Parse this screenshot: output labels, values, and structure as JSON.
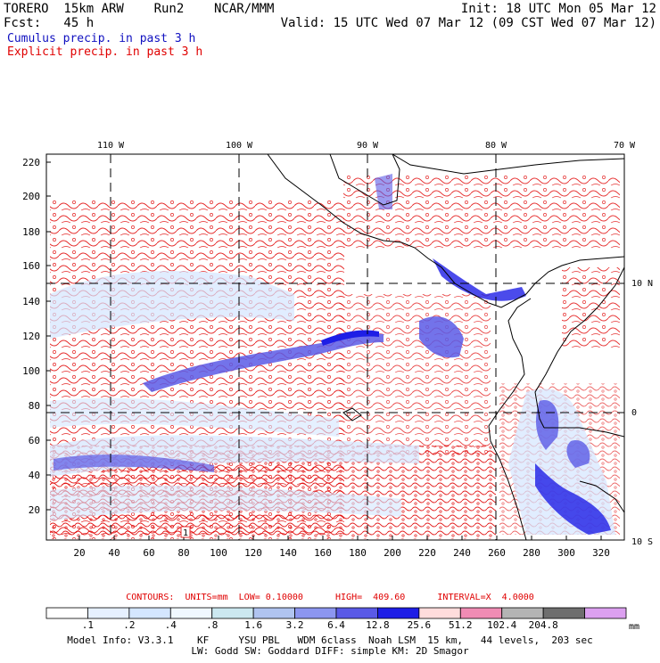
{
  "header": {
    "line1_left": "TORERO  15km ARW    Run2    NCAR/MMM",
    "line1_right": "Init: 18 UTC Mon 05 Mar 12",
    "line2_left": "Fcst:   45 h",
    "line2_right": "Valid: 15 UTC Wed 07 Mar 12 (09 CST Wed 07 Mar 12)",
    "field1": "Cumulus precip. in past 3 h",
    "field2": "Explicit precip. in past 3 h",
    "field1_color": "#1010c0",
    "field2_color": "#e00000"
  },
  "map": {
    "top_labels": [
      "110 W",
      "100 W",
      "90 W",
      "80 W",
      "70 W"
    ],
    "right_labels": [
      "10 N",
      "0",
      "10 S"
    ],
    "left_ticks": [
      "220",
      "200",
      "180",
      "160",
      "140",
      "120",
      "100",
      "80",
      "60",
      "40",
      "20"
    ],
    "bottom_ticks": [
      "20",
      "40",
      "60",
      "80",
      "100",
      "120",
      "140",
      "160",
      "180",
      "200",
      "220",
      "240",
      "260",
      "280",
      "300",
      "320"
    ],
    "marker_label": "1"
  },
  "contours_text": "CONTOURS:  UNITS=mm  LOW= 0.10000      HIGH=  409.60      INTERVAL=X  4.0000",
  "legend": {
    "colors": [
      "#ffffff",
      "#e6f0ff",
      "#d4e6ff",
      "#f0f8ff",
      "#cce8f0",
      "#b0c4f0",
      "#8c96f0",
      "#5a5ae6",
      "#1e1ee6",
      "#ffdcdc",
      "#f08cb4",
      "#b4b4b4",
      "#6e6e6e",
      "#dca0f0"
    ],
    "labels": [
      ".1",
      ".2",
      ".4",
      ".8",
      "1.6",
      "3.2",
      "6.4",
      "12.8",
      "25.6",
      "51.2",
      "102.4",
      "204.8"
    ],
    "unit": "mm"
  },
  "footer": {
    "line1": "Model Info: V3.3.1    KF     YSU PBL   WDM 6class  Noah LSM  15 km,   44 levels,  203 sec",
    "line2": "LW: Godd SW: Goddard DIFF: simple KM: 2D Smagor"
  }
}
